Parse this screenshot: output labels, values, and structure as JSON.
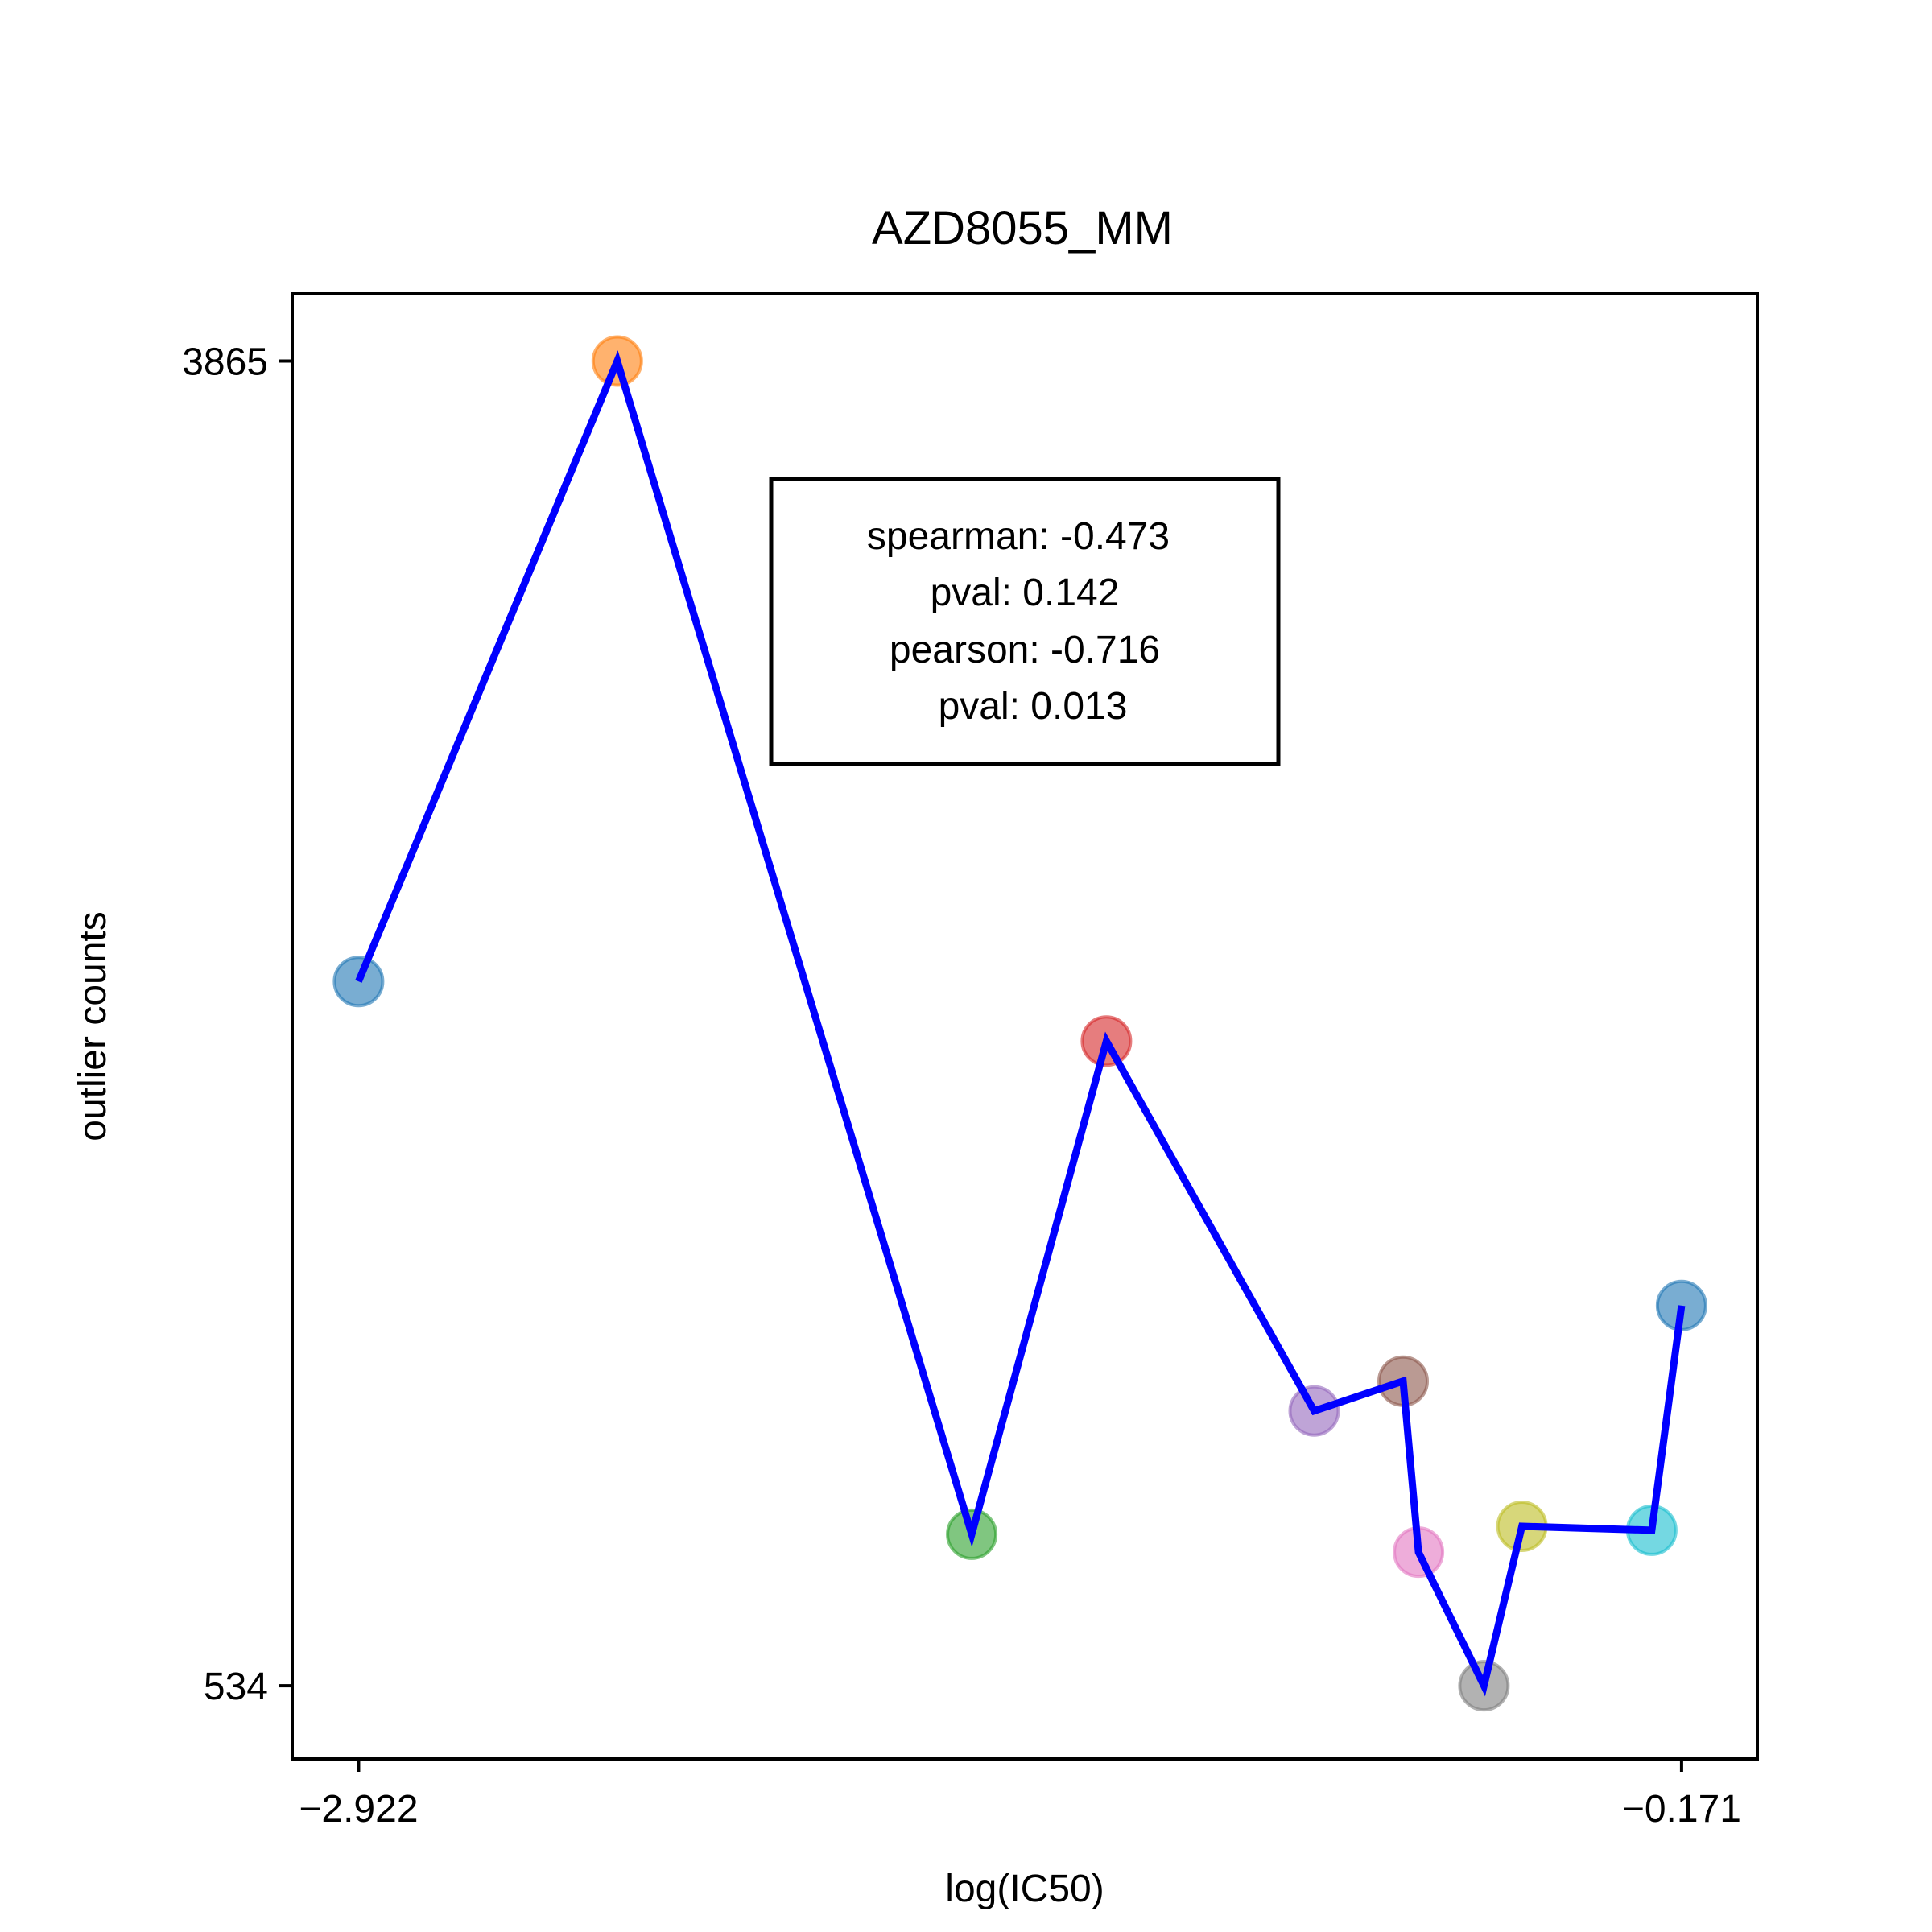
{
  "chart_data": {
    "type": "scatter",
    "title": "AZD8055_MM",
    "xlabel": "log(IC50)",
    "ylabel": "outlier counts",
    "xticks": [
      {
        "value": -2.922,
        "label": "−2.922"
      },
      {
        "value": -0.171,
        "label": "−0.171"
      }
    ],
    "yticks": [
      {
        "value": 3865,
        "label": "3865"
      },
      {
        "value": 534,
        "label": "534"
      }
    ],
    "xlim": [
      -3.06,
      -0.0135
    ],
    "ylim": [
      350,
      4034
    ],
    "grid": false,
    "line_color": "#0000ff",
    "points": [
      {
        "x": -2.922,
        "y": 2305,
        "color": "#1f77b4"
      },
      {
        "x": -2.384,
        "y": 3865,
        "color": "#ff7f0e"
      },
      {
        "x": -1.647,
        "y": 915,
        "color": "#2ca02c"
      },
      {
        "x": -1.367,
        "y": 2155,
        "color": "#d62728"
      },
      {
        "x": -0.935,
        "y": 1225,
        "color": "#9467bd"
      },
      {
        "x": -0.75,
        "y": 1300,
        "color": "#8c564b"
      },
      {
        "x": -0.718,
        "y": 870,
        "color": "#e377c2"
      },
      {
        "x": -0.582,
        "y": 534,
        "color": "#7f7f7f"
      },
      {
        "x": -0.503,
        "y": 935,
        "color": "#bcbd22"
      },
      {
        "x": -0.233,
        "y": 925,
        "color": "#17becf"
      },
      {
        "x": -0.171,
        "y": 1490,
        "color": "#1f77b4"
      }
    ],
    "stats_box": {
      "lines": [
        "spearman: -0.473",
        "pval: 0.142",
        "pearson: -0.716",
        "pval: 0.013"
      ]
    }
  }
}
